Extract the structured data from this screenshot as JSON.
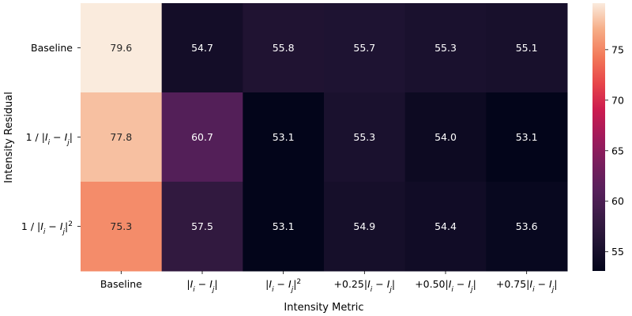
{
  "chart_data": {
    "type": "heatmap",
    "xlabel": "Intensity Metric",
    "ylabel": "Intensity Residual",
    "x_categories": [
      {
        "parts": [
          {
            "t": "Baseline"
          }
        ]
      },
      {
        "parts": [
          {
            "t": "|"
          },
          {
            "t": "I",
            "i": true
          },
          {
            "t": "i",
            "i": true,
            "sub": true
          },
          {
            "t": " − "
          },
          {
            "t": "I",
            "i": true
          },
          {
            "t": "j",
            "i": true,
            "sub": true
          },
          {
            "t": "|"
          }
        ]
      },
      {
        "parts": [
          {
            "t": "|"
          },
          {
            "t": "I",
            "i": true
          },
          {
            "t": "i",
            "i": true,
            "sub": true
          },
          {
            "t": " − "
          },
          {
            "t": "I",
            "i": true
          },
          {
            "t": "j",
            "i": true,
            "sub": true
          },
          {
            "t": "|"
          },
          {
            "t": "2",
            "sup": true
          }
        ]
      },
      {
        "parts": [
          {
            "t": "+0.25|"
          },
          {
            "t": "I",
            "i": true
          },
          {
            "t": "i",
            "i": true,
            "sub": true
          },
          {
            "t": " − "
          },
          {
            "t": "I",
            "i": true
          },
          {
            "t": "j",
            "i": true,
            "sub": true
          },
          {
            "t": "|"
          }
        ]
      },
      {
        "parts": [
          {
            "t": "+0.50|"
          },
          {
            "t": "I",
            "i": true
          },
          {
            "t": "i",
            "i": true,
            "sub": true
          },
          {
            "t": " − "
          },
          {
            "t": "I",
            "i": true
          },
          {
            "t": "j",
            "i": true,
            "sub": true
          },
          {
            "t": "|"
          }
        ]
      },
      {
        "parts": [
          {
            "t": "+0.75|"
          },
          {
            "t": "I",
            "i": true
          },
          {
            "t": "i",
            "i": true,
            "sub": true
          },
          {
            "t": " − "
          },
          {
            "t": "I",
            "i": true
          },
          {
            "t": "j",
            "i": true,
            "sub": true
          },
          {
            "t": "|"
          }
        ]
      }
    ],
    "y_categories": [
      {
        "parts": [
          {
            "t": "Baseline"
          }
        ]
      },
      {
        "parts": [
          {
            "t": "1 / |"
          },
          {
            "t": "I",
            "i": true
          },
          {
            "t": "i",
            "i": true,
            "sub": true
          },
          {
            "t": " − "
          },
          {
            "t": "I",
            "i": true
          },
          {
            "t": "j",
            "i": true,
            "sub": true
          },
          {
            "t": "|"
          }
        ]
      },
      {
        "parts": [
          {
            "t": "1 / |"
          },
          {
            "t": "I",
            "i": true
          },
          {
            "t": "i",
            "i": true,
            "sub": true
          },
          {
            "t": " − "
          },
          {
            "t": "I",
            "i": true
          },
          {
            "t": "j",
            "i": true,
            "sub": true
          },
          {
            "t": "|"
          },
          {
            "t": "2",
            "sup": true
          }
        ]
      }
    ],
    "values": [
      [
        79.6,
        54.7,
        55.8,
        55.7,
        55.3,
        55.1
      ],
      [
        77.8,
        60.7,
        53.1,
        55.3,
        54.0,
        53.1
      ],
      [
        75.3,
        57.5,
        53.1,
        54.9,
        54.4,
        53.6
      ]
    ],
    "value_labels": [
      [
        "79.6",
        "54.7",
        "55.8",
        "55.7",
        "55.3",
        "55.1"
      ],
      [
        "77.8",
        "60.7",
        "53.1",
        "55.3",
        "54.0",
        "53.1"
      ],
      [
        "75.3",
        "57.5",
        "53.1",
        "54.9",
        "54.4",
        "53.6"
      ]
    ],
    "colormap": "rocket",
    "vmin": 53.1,
    "vmax": 79.6,
    "colorbar": {
      "ticks": [
        55,
        60,
        65,
        70,
        75
      ],
      "tick_labels": [
        "55",
        "60",
        "65",
        "70",
        "75"
      ],
      "placement": "right"
    },
    "grid": false
  }
}
